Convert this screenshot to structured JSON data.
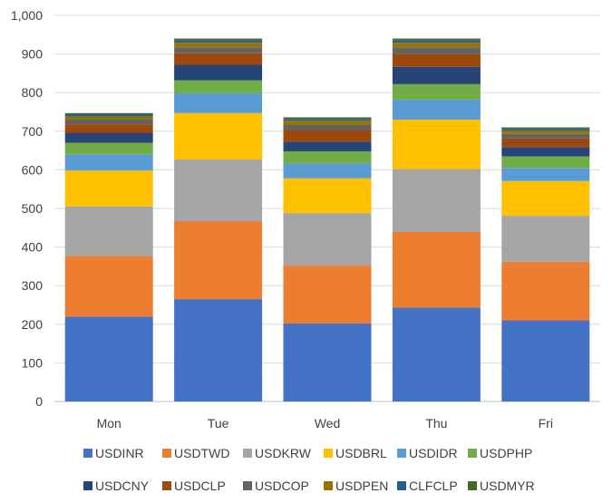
{
  "chart_data": {
    "type": "bar",
    "stacked": true,
    "categories": [
      "Mon",
      "Tue",
      "Wed",
      "Thu",
      "Fri"
    ],
    "ylim": [
      0,
      1000
    ],
    "yticks": [
      0,
      100,
      200,
      300,
      400,
      500,
      600,
      700,
      800,
      900,
      1000
    ],
    "ytick_labels": [
      "0",
      "100",
      "200",
      "300",
      "400",
      "500",
      "600",
      "700",
      "800",
      "900",
      "1,000"
    ],
    "grid": true,
    "legend_position": "bottom",
    "series": [
      {
        "name": "USDINR",
        "color": "#4472C4",
        "values": [
          220,
          265,
          202,
          243,
          210
        ]
      },
      {
        "name": "USDTWD",
        "color": "#ED7D31",
        "values": [
          157,
          202,
          150,
          196,
          152
        ]
      },
      {
        "name": "USDKRW",
        "color": "#A5A5A5",
        "values": [
          128,
          160,
          136,
          163,
          119
        ]
      },
      {
        "name": "USDBRL",
        "color": "#FFC000",
        "values": [
          93,
          120,
          90,
          128,
          90
        ]
      },
      {
        "name": "USDIDR",
        "color": "#5B9BD5",
        "values": [
          42,
          52,
          38,
          52,
          34
        ]
      },
      {
        "name": "USDPHP",
        "color": "#70AD47",
        "values": [
          30,
          33,
          32,
          40,
          30
        ]
      },
      {
        "name": "USDCNY",
        "color": "#264478",
        "values": [
          26,
          40,
          25,
          45,
          24
        ]
      },
      {
        "name": "USDCLP",
        "color": "#9E480E",
        "values": [
          22,
          30,
          30,
          33,
          22
        ]
      },
      {
        "name": "USDCOP",
        "color": "#636363",
        "values": [
          12,
          15,
          13,
          17,
          12
        ]
      },
      {
        "name": "USDPEN",
        "color": "#997300",
        "values": [
          8,
          12,
          11,
          12,
          8
        ]
      },
      {
        "name": "CLFCLP",
        "color": "#255E91",
        "values": [
          5,
          6,
          5,
          6,
          5
        ]
      },
      {
        "name": "USDMYR",
        "color": "#43682B",
        "values": [
          4,
          5,
          4,
          5,
          4
        ]
      }
    ]
  }
}
